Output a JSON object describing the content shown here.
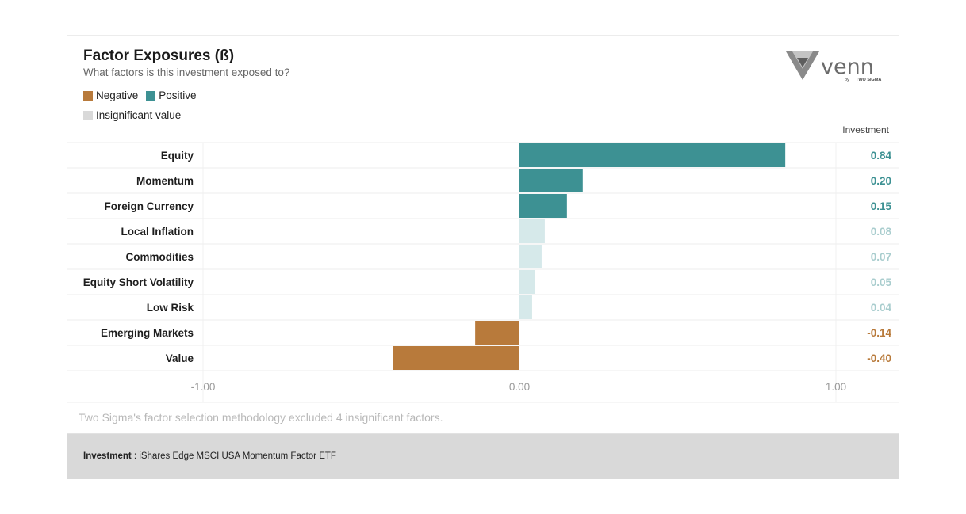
{
  "header": {
    "title": "Factor Exposures (ß)",
    "subtitle": "What factors is this investment exposed to?"
  },
  "legend": {
    "negative": "Negative",
    "positive": "Positive",
    "insignificant": "Insignificant value"
  },
  "logo": {
    "brand": "venn",
    "byline": "by",
    "company": "TWO SIGMA"
  },
  "column_header": "Investment",
  "colors": {
    "negative": "#b87a3b",
    "positive": "#3d9193",
    "insignificant": "#d6e9ea",
    "insignificant_text": "#a9cdce",
    "legend_insignificant": "#d9d9d9"
  },
  "chart_data": {
    "type": "bar",
    "orientation": "horizontal",
    "categories": [
      "Equity",
      "Momentum",
      "Foreign Currency",
      "Local Inflation",
      "Commodities",
      "Equity Short Volatility",
      "Low Risk",
      "Emerging Markets",
      "Value"
    ],
    "values": [
      0.84,
      0.2,
      0.15,
      0.08,
      0.07,
      0.05,
      0.04,
      -0.14,
      -0.4
    ],
    "value_labels": [
      "0.84",
      "0.20",
      "0.15",
      "0.08",
      "0.07",
      "0.05",
      "0.04",
      "-0.14",
      "-0.40"
    ],
    "significant": [
      true,
      true,
      true,
      false,
      false,
      false,
      false,
      true,
      true
    ],
    "xlim": [
      -1.0,
      1.0
    ],
    "xticks": [
      "-1.00",
      "0.00",
      "1.00"
    ],
    "grid": true
  },
  "footnote": "Two Sigma's factor selection methodology excluded 4 insignificant factors.",
  "footer": {
    "label": "Investment",
    "separator": " : ",
    "value": "iShares Edge MSCI USA Momentum Factor ETF"
  }
}
